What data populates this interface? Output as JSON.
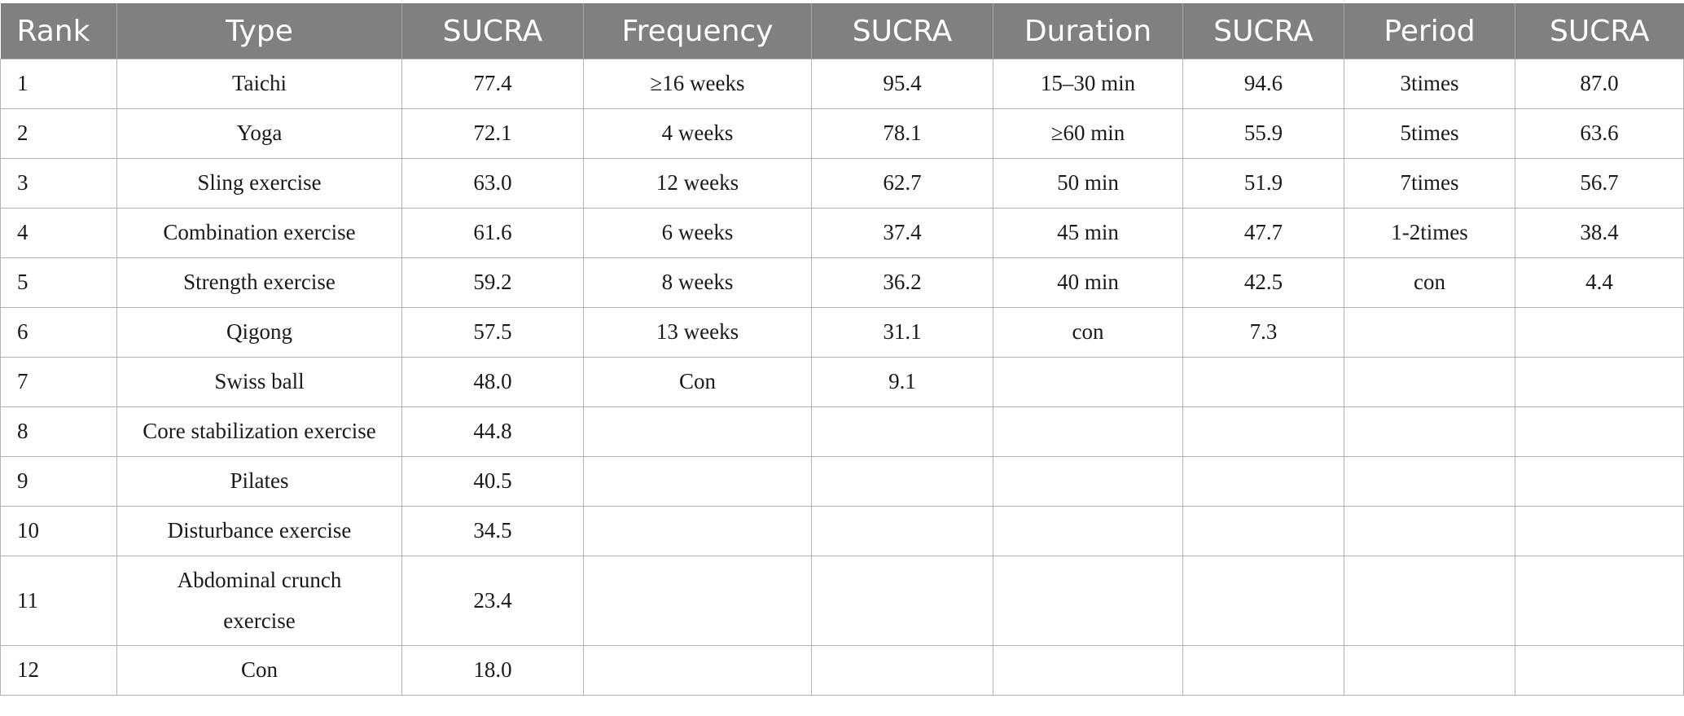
{
  "headers": [
    "Rank",
    "Type",
    "SUCRA",
    "Frequency",
    "SUCRA",
    "Duration",
    "SUCRA",
    "Period",
    "SUCRA"
  ],
  "rows": [
    [
      "1",
      "Taichi",
      "77.4",
      "≥16 weeks",
      "95.4",
      "15–30 min",
      "94.6",
      "3times",
      "87.0"
    ],
    [
      "2",
      "Yoga",
      "72.1",
      "4 weeks",
      "78.1",
      "≥60 min",
      "55.9",
      "5times",
      "63.6"
    ],
    [
      "3",
      "Sling exercise",
      "63.0",
      "12 weeks",
      "62.7",
      "50 min",
      "51.9",
      "7times",
      "56.7"
    ],
    [
      "4",
      "Combination exercise",
      "61.6",
      "6 weeks",
      "37.4",
      "45 min",
      "47.7",
      "1-2times",
      "38.4"
    ],
    [
      "5",
      "Strength exercise",
      "59.2",
      "8 weeks",
      "36.2",
      "40 min",
      "42.5",
      "con",
      "4.4"
    ],
    [
      "6",
      "Qigong",
      "57.5",
      "13 weeks",
      "31.1",
      "con",
      "7.3",
      "",
      ""
    ],
    [
      "7",
      "Swiss ball",
      "48.0",
      "Con",
      "9.1",
      "",
      "",
      "",
      ""
    ],
    [
      "8",
      "Core stabilization exercise",
      "44.8",
      "",
      "",
      "",
      "",
      "",
      ""
    ],
    [
      "9",
      "Pilates",
      "40.5",
      "",
      "",
      "",
      "",
      "",
      ""
    ],
    [
      "10",
      "Disturbance exercise",
      "34.5",
      "",
      "",
      "",
      "",
      "",
      ""
    ],
    [
      "11",
      "Abdominal crunch exercise",
      "23.4",
      "",
      "",
      "",
      "",
      "",
      ""
    ],
    [
      "12",
      "Con",
      "18.0",
      "",
      "",
      "",
      "",
      "",
      ""
    ]
  ]
}
